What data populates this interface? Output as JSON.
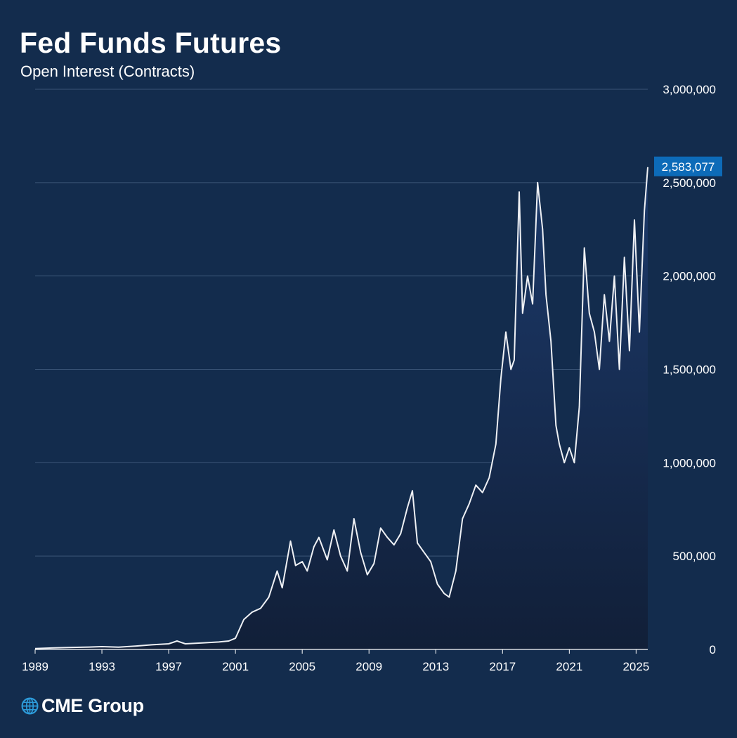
{
  "title": "Fed Funds Futures",
  "subtitle": "Open Interest (Contracts)",
  "brand": {
    "name": "CME Group",
    "icon": "globe-icon",
    "icon_color": "#2d9cdb"
  },
  "colors": {
    "background": "#132c4d",
    "line": "#eef0f4",
    "area_top": "#1c3a6b",
    "area_bottom": "#111f38",
    "gridline": "#3b5577",
    "callout": "#0d6bb8"
  },
  "chart_data": {
    "type": "area",
    "title": "Fed Funds Futures",
    "subtitle": "Open Interest (Contracts)",
    "xlabel": "",
    "ylabel": "",
    "xlim": [
      1989.0,
      2025.7
    ],
    "ylim": [
      0,
      3000000
    ],
    "grid": true,
    "y_axis_position": "right",
    "x_ticks": [
      "1989",
      "1993",
      "1997",
      "2001",
      "2005",
      "2009",
      "2013",
      "2017",
      "2021",
      "2025"
    ],
    "y_ticks": [
      "0",
      "500,000",
      "1,000,000",
      "1,500,000",
      "2,000,000",
      "2,500,000",
      "3,000,000"
    ],
    "last_value_label": "2,583,077",
    "series": [
      {
        "x": [
          1989.0,
          1990.0,
          1991.0,
          1992.0,
          1993.0,
          1994.0,
          1995.0,
          1996.0,
          1997.0,
          1997.5,
          1998.0,
          1999.0,
          2000.0,
          2000.6,
          2001.0,
          2001.5,
          2002.0,
          2002.5,
          2003.0,
          2003.5,
          2003.8,
          2004.3,
          2004.6,
          2005.0,
          2005.3,
          2005.7,
          2006.0,
          2006.5,
          2006.9,
          2007.3,
          2007.7,
          2008.1,
          2008.5,
          2008.9,
          2009.3,
          2009.7,
          2010.1,
          2010.5,
          2010.9,
          2011.3,
          2011.6,
          2011.9,
          2012.3,
          2012.7,
          2013.1,
          2013.5,
          2013.8,
          2014.2,
          2014.6,
          2015.0,
          2015.4,
          2015.8,
          2016.2,
          2016.6,
          2016.9,
          2017.2,
          2017.5,
          2017.7,
          2018.0,
          2018.2,
          2018.5,
          2018.8,
          2019.1,
          2019.4,
          2019.6,
          2019.9,
          2020.2,
          2020.4,
          2020.7,
          2021.0,
          2021.3,
          2021.6,
          2021.9,
          2022.2,
          2022.5,
          2022.8,
          2023.1,
          2023.4,
          2023.7,
          2024.0,
          2024.3,
          2024.6,
          2024.9,
          2025.2,
          2025.5,
          2025.7
        ],
        "values": [
          5000,
          8000,
          10000,
          12000,
          15000,
          12000,
          18000,
          25000,
          30000,
          45000,
          30000,
          35000,
          40000,
          45000,
          60000,
          160000,
          200000,
          220000,
          280000,
          420000,
          330000,
          580000,
          450000,
          470000,
          420000,
          550000,
          600000,
          480000,
          640000,
          500000,
          420000,
          700000,
          520000,
          400000,
          460000,
          650000,
          600000,
          560000,
          620000,
          760000,
          850000,
          570000,
          520000,
          470000,
          350000,
          300000,
          280000,
          420000,
          700000,
          780000,
          880000,
          840000,
          920000,
          1100000,
          1450000,
          1700000,
          1500000,
          1550000,
          2450000,
          1800000,
          2000000,
          1850000,
          2500000,
          2250000,
          1900000,
          1650000,
          1200000,
          1100000,
          1000000,
          1080000,
          1000000,
          1300000,
          2150000,
          1800000,
          1700000,
          1500000,
          1900000,
          1650000,
          2000000,
          1500000,
          2100000,
          1600000,
          2300000,
          1700000,
          2350000,
          2583077
        ]
      }
    ]
  }
}
